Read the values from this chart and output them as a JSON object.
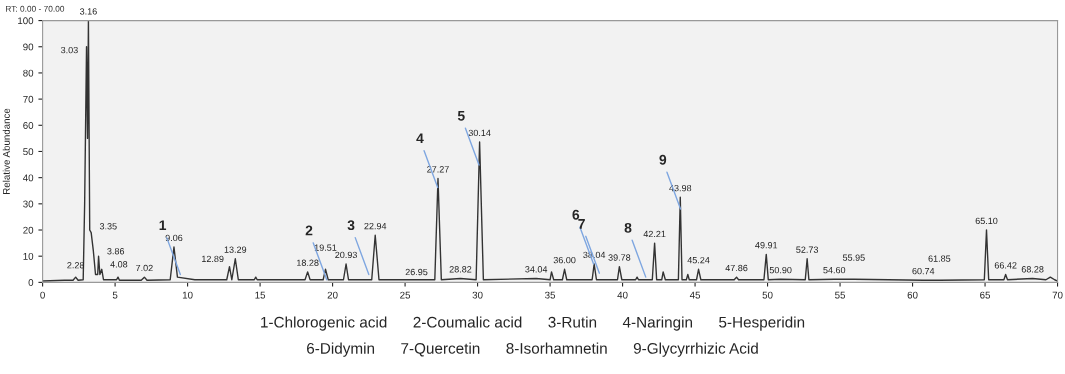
{
  "chart_data": {
    "type": "line",
    "ylabel": "Relative Abundance",
    "xlim": [
      0,
      70
    ],
    "xticks": [
      0,
      5,
      10,
      15,
      20,
      25,
      30,
      35,
      40,
      45,
      50,
      55,
      60,
      65,
      70
    ],
    "ylim": [
      0,
      100
    ],
    "yticks": [
      0,
      10,
      20,
      30,
      40,
      50,
      60,
      70,
      80,
      90,
      100
    ],
    "grid": false,
    "legend": false,
    "marker": "none",
    "line_style": "solid",
    "series": [
      {
        "color": "#333333",
        "x": [
          0,
          1.5,
          2.1,
          2.28,
          2.45,
          2.8,
          2.9,
          3.03,
          3.1,
          3.16,
          3.25,
          3.35,
          3.5,
          3.65,
          3.8,
          3.86,
          3.95,
          4.08,
          4.2,
          5.1,
          5.2,
          5.3,
          6.8,
          7.02,
          7.2,
          8.8,
          9.06,
          9.3,
          10.5,
          12.7,
          12.89,
          13.05,
          13.29,
          13.5,
          14.6,
          14.7,
          14.8,
          18.1,
          18.28,
          18.45,
          19.35,
          19.51,
          19.7,
          20.75,
          20.93,
          21.1,
          22.7,
          22.94,
          23.2,
          26.95,
          27.05,
          27.27,
          27.5,
          28.82,
          29.9,
          30.14,
          30.4,
          34.04,
          35.0,
          35.1,
          35.25,
          35.85,
          36.0,
          36.15,
          37.9,
          38.04,
          38.2,
          39.65,
          39.78,
          39.95,
          40.9,
          41.0,
          41.1,
          42.05,
          42.21,
          42.35,
          42.7,
          42.8,
          42.95,
          43.85,
          43.98,
          44.1,
          44.4,
          44.5,
          44.6,
          45.1,
          45.24,
          45.4,
          47.7,
          47.86,
          48.0,
          49.75,
          49.91,
          50.05,
          50.9,
          52.6,
          52.73,
          52.85,
          54.6,
          55.95,
          60.74,
          61.85,
          64.95,
          65.1,
          65.25,
          66.3,
          66.42,
          66.55,
          68.28,
          69.2,
          69.5,
          69.8,
          70
        ],
        "values": [
          0.5,
          0.8,
          0.8,
          2,
          0.8,
          1,
          30,
          90,
          55,
          100,
          20,
          19,
          12,
          3,
          3,
          10,
          3,
          5,
          1,
          1,
          2,
          0.8,
          0.8,
          2,
          0.8,
          1,
          13.5,
          2,
          1,
          1,
          6,
          1,
          9,
          1,
          1,
          2,
          1,
          1,
          4,
          1,
          1,
          5,
          1,
          1,
          7,
          1,
          1,
          18,
          1,
          1,
          1,
          39.7,
          1,
          1.5,
          1,
          53.6,
          1,
          1.5,
          1,
          4,
          1,
          1,
          5,
          1,
          1,
          7,
          1,
          1,
          6,
          1,
          1,
          2,
          1,
          1,
          15,
          1,
          1,
          4,
          1,
          1,
          32.5,
          1,
          1,
          3,
          1,
          1,
          5,
          1,
          1,
          2,
          1,
          1,
          10.7,
          1,
          1.2,
          1,
          9,
          1,
          1.2,
          1.2,
          0.8,
          0.8,
          1,
          20,
          1,
          1,
          3,
          1,
          1.5,
          1,
          2,
          1,
          0.5
        ]
      }
    ],
    "annotations": [
      "RT: 0.00 - 70.00",
      {
        "text": "2.28",
        "x": 2.28,
        "y": 2
      },
      {
        "text": "3.03",
        "x": 3.03,
        "y": 90
      },
      {
        "text": "3.16",
        "x": 3.16,
        "y": 100
      },
      {
        "text": "3.35",
        "x": 3.35,
        "y": 19
      },
      {
        "text": "3.86",
        "x": 3.86,
        "y": 10
      },
      {
        "text": "4.08",
        "x": 4.08,
        "y": 5
      },
      {
        "text": "7.02",
        "x": 7.02,
        "y": 2
      },
      {
        "text": "9.06",
        "x": 9.06,
        "y": 13.5
      },
      {
        "text": "12.89",
        "x": 12.89,
        "y": 6
      },
      {
        "text": "13.29",
        "x": 13.29,
        "y": 9
      },
      {
        "text": "18.28",
        "x": 18.28,
        "y": 4
      },
      {
        "text": "19.51",
        "x": 19.51,
        "y": 5
      },
      {
        "text": "20.93",
        "x": 20.93,
        "y": 7
      },
      {
        "text": "22.94",
        "x": 22.94,
        "y": 18
      },
      {
        "text": "26.95",
        "x": 26.95,
        "y": 1
      },
      {
        "text": "27.27",
        "x": 27.27,
        "y": 39.7
      },
      {
        "text": "28.82",
        "x": 28.82,
        "y": 1.5
      },
      {
        "text": "30.14",
        "x": 30.14,
        "y": 53.6
      },
      {
        "text": "34.04",
        "x": 34.04,
        "y": 1.5
      },
      {
        "text": "36.00",
        "x": 36.0,
        "y": 5
      },
      {
        "text": "38.04",
        "x": 38.04,
        "y": 7
      },
      {
        "text": "39.78",
        "x": 39.78,
        "y": 6
      },
      {
        "text": "42.21",
        "x": 42.21,
        "y": 15
      },
      {
        "text": "43.98",
        "x": 43.98,
        "y": 32.5
      },
      {
        "text": "45.24",
        "x": 45.24,
        "y": 5
      },
      {
        "text": "47.86",
        "x": 47.86,
        "y": 2
      },
      {
        "text": "49.91",
        "x": 49.91,
        "y": 10.7
      },
      {
        "text": "50.90",
        "x": 50.9,
        "y": 1.2
      },
      {
        "text": "52.73",
        "x": 52.73,
        "y": 9
      },
      {
        "text": "54.60",
        "x": 54.6,
        "y": 1.2
      },
      {
        "text": "55.95",
        "x": 55.95,
        "y": 1.2
      },
      {
        "text": "60.74",
        "x": 60.74,
        "y": 0.8
      },
      {
        "text": "61.85",
        "x": 61.85,
        "y": 0.8
      },
      {
        "text": "65.10",
        "x": 65.1,
        "y": 20
      },
      {
        "text": "66.42",
        "x": 66.42,
        "y": 3
      },
      {
        "text": "68.28",
        "x": 68.28,
        "y": 1.5
      },
      {
        "text": "1",
        "x": 9.5,
        "y": 3
      },
      {
        "text": "2",
        "x": 19.6,
        "y": 1
      },
      {
        "text": "3",
        "x": 22.5,
        "y": 3
      },
      {
        "text": "4",
        "x": 27.25,
        "y": 36.2
      },
      {
        "text": "5",
        "x": 30.1,
        "y": 44.8
      },
      {
        "text": "6",
        "x": 38.0,
        "y": 7
      },
      {
        "text": "7",
        "x": 38.4,
        "y": 3.5
      },
      {
        "text": "8",
        "x": 41.6,
        "y": 2
      },
      {
        "text": "9",
        "x": 44.0,
        "y": 28
      },
      "1-Chlorogenic acid      2-Coumalic acid      3-Rutin      4-Naringin      5-Hesperidin",
      "6-Didymin      7-Quercetin      8-Isorhamnetin      9-Glycyrrhizic Acid"
    ]
  }
}
